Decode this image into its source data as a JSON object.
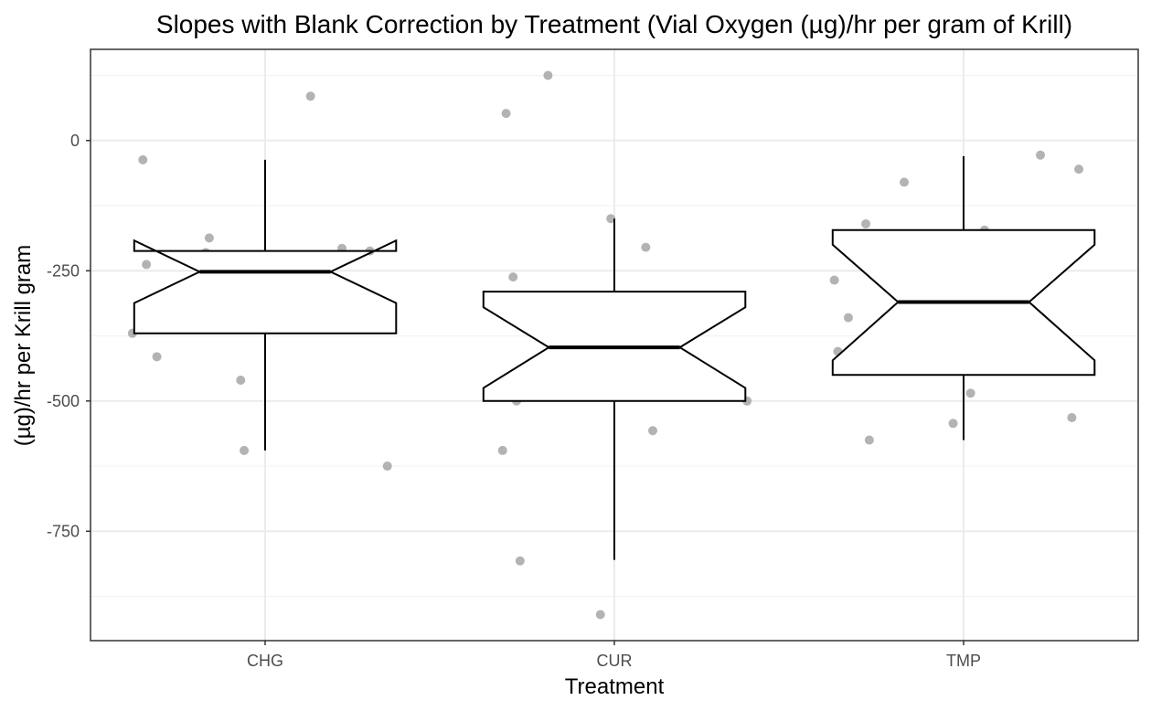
{
  "chart_data": {
    "type": "boxplot",
    "title": "Slopes with Blank Correction by Treatment (Vial Oxygen (µg)/hr per gram of Krill)",
    "xlabel": "Treatment",
    "ylabel": "(µg)/hr per Krill gram",
    "ylim": [
      -960,
      175
    ],
    "yticks": [
      0,
      -250,
      -500,
      -750
    ],
    "ytick_labels": [
      "0",
      "-250",
      "-500",
      "-750"
    ],
    "grid": true,
    "notched": true,
    "categories": [
      "CHG",
      "CUR",
      "TMP"
    ],
    "boxes": [
      {
        "category": "CHG",
        "q1": -370,
        "median": -252,
        "q3": -212,
        "whisker_low": -595,
        "whisker_high": -37,
        "notch_low": -312,
        "notch_high": -192
      },
      {
        "category": "CUR",
        "q1": -500,
        "median": -397,
        "q3": -290,
        "whisker_low": -805,
        "whisker_high": -150,
        "notch_low": -475,
        "notch_high": -320
      },
      {
        "category": "TMP",
        "q1": -450,
        "median": -310,
        "q3": -172,
        "whisker_low": -575,
        "whisker_high": -30,
        "notch_low": -422,
        "notch_high": -200
      }
    ],
    "points": [
      {
        "category": "CHG",
        "jitter": -0.35,
        "y": -37
      },
      {
        "category": "CHG",
        "jitter": -0.34,
        "y": -238
      },
      {
        "category": "CHG",
        "jitter": -0.38,
        "y": -370
      },
      {
        "category": "CHG",
        "jitter": -0.31,
        "y": -415
      },
      {
        "category": "CHG",
        "jitter": -0.16,
        "y": -187
      },
      {
        "category": "CHG",
        "jitter": -0.17,
        "y": -215
      },
      {
        "category": "CHG",
        "jitter": -0.07,
        "y": -460
      },
      {
        "category": "CHG",
        "jitter": -0.06,
        "y": -595
      },
      {
        "category": "CHG",
        "jitter": 0.13,
        "y": 85
      },
      {
        "category": "CHG",
        "jitter": 0.22,
        "y": -207
      },
      {
        "category": "CHG",
        "jitter": 0.3,
        "y": -212
      },
      {
        "category": "CHG",
        "jitter": 0.35,
        "y": -625
      },
      {
        "category": "CUR",
        "jitter": -0.33,
        "y": -320
      },
      {
        "category": "CUR",
        "jitter": -0.32,
        "y": -595
      },
      {
        "category": "CUR",
        "jitter": -0.31,
        "y": 52
      },
      {
        "category": "CUR",
        "jitter": -0.29,
        "y": -262
      },
      {
        "category": "CUR",
        "jitter": -0.28,
        "y": -500
      },
      {
        "category": "CUR",
        "jitter": -0.27,
        "y": -807
      },
      {
        "category": "CUR",
        "jitter": -0.19,
        "y": 125
      },
      {
        "category": "CUR",
        "jitter": -0.04,
        "y": -910
      },
      {
        "category": "CUR",
        "jitter": -0.01,
        "y": -150
      },
      {
        "category": "CUR",
        "jitter": 0.09,
        "y": -205
      },
      {
        "category": "CUR",
        "jitter": 0.11,
        "y": -557
      },
      {
        "category": "CUR",
        "jitter": 0.38,
        "y": -500
      },
      {
        "category": "TMP",
        "jitter": -0.37,
        "y": -268
      },
      {
        "category": "TMP",
        "jitter": -0.36,
        "y": -405
      },
      {
        "category": "TMP",
        "jitter": -0.33,
        "y": -340
      },
      {
        "category": "TMP",
        "jitter": -0.28,
        "y": -160
      },
      {
        "category": "TMP",
        "jitter": -0.27,
        "y": -575
      },
      {
        "category": "TMP",
        "jitter": -0.17,
        "y": -80
      },
      {
        "category": "TMP",
        "jitter": -0.03,
        "y": -543
      },
      {
        "category": "TMP",
        "jitter": 0.02,
        "y": -485
      },
      {
        "category": "TMP",
        "jitter": 0.06,
        "y": -172
      },
      {
        "category": "TMP",
        "jitter": 0.22,
        "y": -28
      },
      {
        "category": "TMP",
        "jitter": 0.31,
        "y": -532
      },
      {
        "category": "TMP",
        "jitter": 0.33,
        "y": -55
      }
    ],
    "colors": {
      "points": "#b3b3b3",
      "box_stroke": "#000000",
      "box_fill": "#ffffff",
      "grid_major": "#ebebeb",
      "grid_minor": "#f2f2f2",
      "panel_border": "#333333"
    }
  }
}
